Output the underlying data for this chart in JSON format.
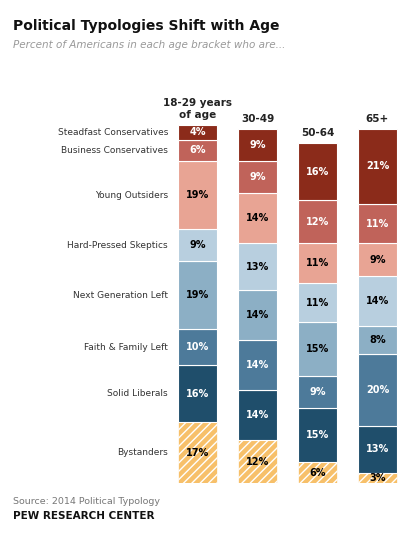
{
  "title": "Political Typologies Shift with Age",
  "subtitle": "Percent of Americans in each age bracket who are...",
  "source_line1": "Source: 2014 Political Typology",
  "source_line2": "PEW RESEARCH CENTER",
  "age_labels": [
    "18-29 years\nof age",
    "30-49",
    "50-64",
    "65+"
  ],
  "cat_labels": [
    "Steadfast Conservatives",
    "Business Conservatives",
    "Young Outsiders",
    "Hard-Pressed Skeptics",
    "Next Generation Left",
    "Faith & Family Left",
    "Solid Liberals",
    "Bystanders"
  ],
  "vals": [
    [
      4,
      6,
      19,
      9,
      19,
      10,
      16,
      17
    ],
    [
      9,
      9,
      14,
      13,
      14,
      14,
      14,
      12
    ],
    [
      16,
      12,
      11,
      11,
      15,
      9,
      15,
      6
    ],
    [
      21,
      11,
      9,
      14,
      8,
      20,
      13,
      3
    ]
  ],
  "colors": [
    "#8B2B1A",
    "#C0635A",
    "#E8A494",
    "#B8CFDF",
    "#8CAFC5",
    "#4D7A9A",
    "#1F4E6B",
    "#F5A623"
  ],
  "text_colors": [
    "white",
    "white",
    "black",
    "black",
    "black",
    "white",
    "white",
    "black"
  ],
  "hatch_idx": 7,
  "hatch": "////",
  "background": "#FFFFFF"
}
